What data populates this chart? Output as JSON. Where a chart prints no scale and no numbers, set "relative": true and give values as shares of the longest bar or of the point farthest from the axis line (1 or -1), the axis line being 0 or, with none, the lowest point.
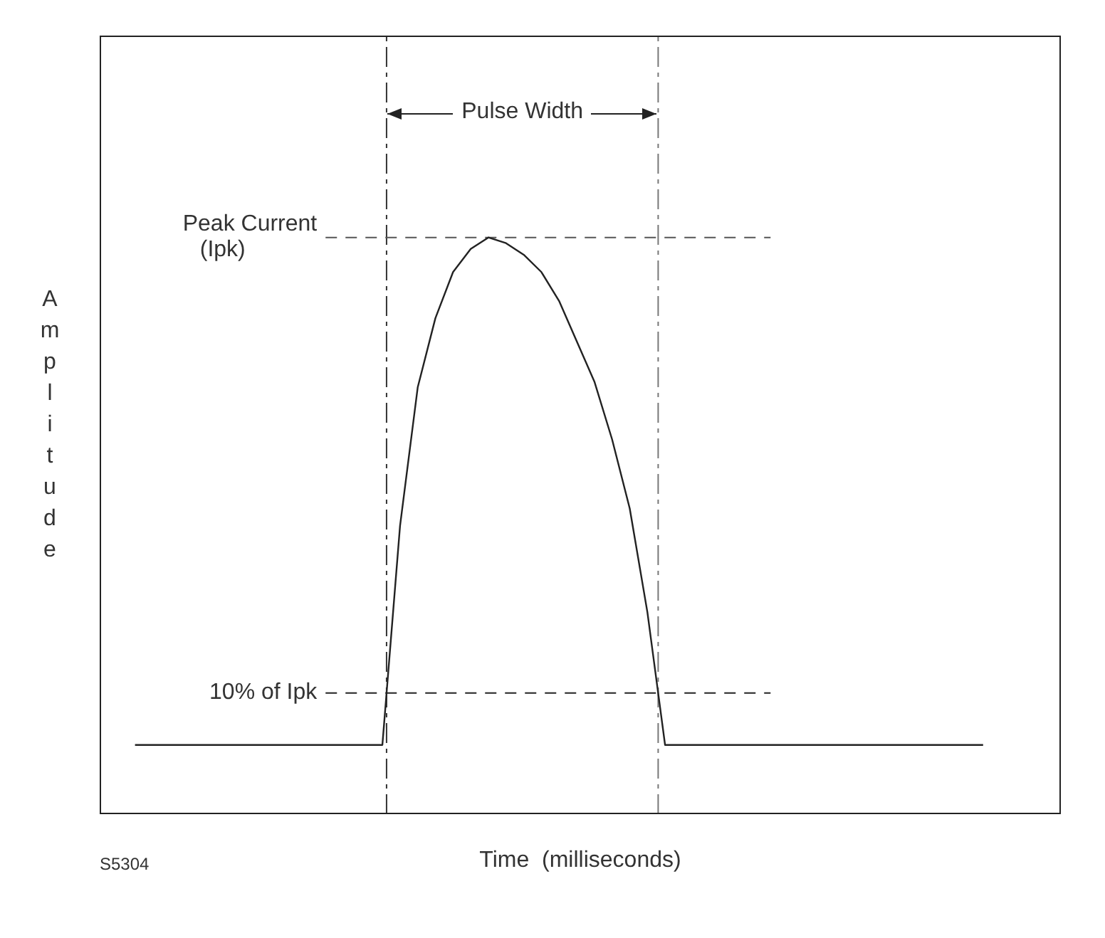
{
  "chart_data": {
    "type": "line",
    "xlabel": "Time  (milliseconds)",
    "ylabel": "Amplitude",
    "relative": true,
    "marker": "none",
    "line_style": "solid",
    "categories": [
      null,
      null,
      null,
      null,
      null,
      null,
      null,
      null,
      null,
      null,
      null,
      null,
      null,
      null,
      null,
      null,
      null,
      null,
      null,
      null,
      null,
      null,
      null,
      null,
      null,
      null,
      null,
      null,
      null,
      null,
      null,
      null,
      null,
      null,
      null,
      null,
      null,
      null,
      null,
      null,
      null,
      null,
      null,
      null,
      null,
      null,
      null,
      null,
      null
    ],
    "series": [
      {
        "color": "#222222",
        "values": [
          0.12,
          0.12,
          0.12,
          0.12,
          0.12,
          0.12,
          0.12,
          0.12,
          0.12,
          0.12,
          0.12,
          0.12,
          0.12,
          0.12,
          0.12,
          0.5,
          0.74,
          0.86,
          0.94,
          0.98,
          1,
          0.99,
          0.97,
          0.94,
          0.89,
          0.82,
          0.75,
          0.65,
          0.53,
          0.35,
          0.12,
          0.12,
          0.12,
          0.12,
          0.12,
          0.12,
          0.12,
          0.12,
          0.12,
          0.12,
          0.12,
          0.12,
          0.12,
          0.12,
          0.12,
          0.12,
          0.12,
          0.12,
          0.12
        ]
      }
    ],
    "ref_lines": [
      {
        "axis": "y",
        "value": 1,
        "label": "Peak Current\n(Ipk)",
        "line_style": "dashed",
        "color": "#555555"
      },
      {
        "axis": "y",
        "value": 0.21,
        "label": "10% of Ipk",
        "line_style": "dashed",
        "color": "#222222"
      }
    ],
    "annotations": [
      "Pulse Width",
      "S5304"
    ]
  }
}
